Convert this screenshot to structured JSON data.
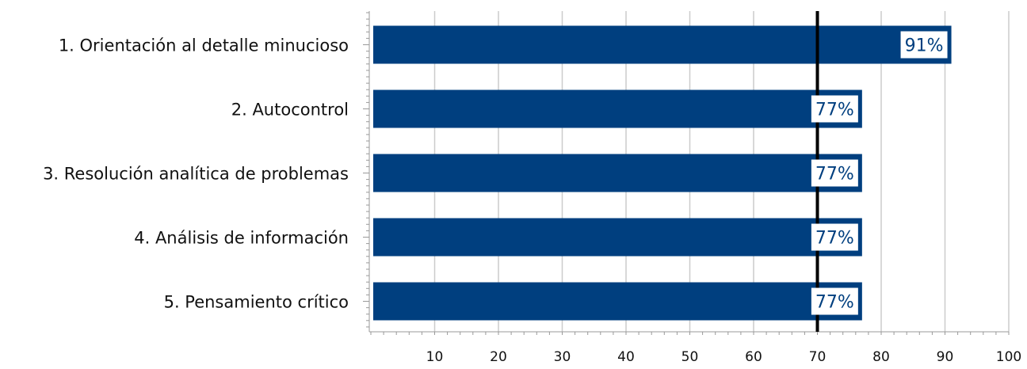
{
  "chart_data": {
    "type": "bar",
    "orientation": "horizontal",
    "categories": [
      "1. Orientación al detalle minucioso",
      "2. Autocontrol",
      "3. Resolución analítica de problemas",
      "4. Análisis de información",
      "5. Pensamiento crítico"
    ],
    "values": [
      91,
      77,
      77,
      77,
      77
    ],
    "data_labels": [
      "91%",
      "77%",
      "77%",
      "77%",
      "77%"
    ],
    "xlim": [
      0,
      100
    ],
    "x_ticks": [
      10,
      20,
      30,
      40,
      50,
      60,
      70,
      80,
      90,
      100
    ],
    "x_tick_labels": [
      "10",
      "20",
      "30",
      "40",
      "50",
      "60",
      "70",
      "80",
      "90",
      "100"
    ],
    "reference_line": 70,
    "grid": true,
    "title": "",
    "xlabel": "",
    "ylabel": "",
    "colors": {
      "bar": "#003f7f",
      "label_text": "#003f7f",
      "label_background": "#ffffff",
      "grid": "#cccccc",
      "axis": "#999999",
      "reference_line": "#000000",
      "text": "#111111"
    }
  }
}
